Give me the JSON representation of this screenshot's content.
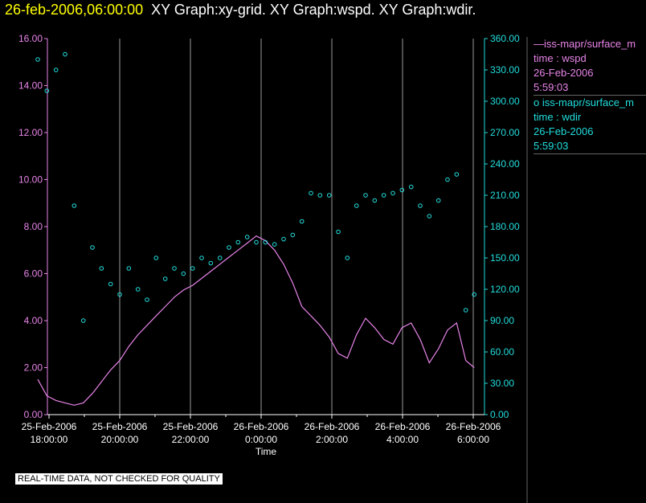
{
  "title": {
    "timestamp": "26-feb-2006,06:00:00",
    "graphs": "XY Graph:xy-grid.  XY Graph:wspd.  XY Graph:wdir."
  },
  "note": "REAL-TIME DATA, NOT CHECKED FOR QUALITY",
  "legend": {
    "series1": {
      "name": "—iss-mapr/surface_m",
      "var": "time : wspd",
      "date": "26-Feb-2006",
      "time": "5:59:03"
    },
    "series2": {
      "name": "o iss-mapr/surface_m",
      "var": "time : wdir",
      "date": "26-Feb-2006",
      "time": "5:59:03"
    }
  },
  "colors": {
    "wspd": "#e884e8",
    "wdir": "#22dddd",
    "timestamp": "#ffff00",
    "grid": "#9a9a9a"
  },
  "chart_data": {
    "type": "line",
    "xlabel": "Time",
    "x_ticks": [
      {
        "date": "25-Feb-2006",
        "time": "18:00:00"
      },
      {
        "date": "25-Feb-2006",
        "time": "20:00:00"
      },
      {
        "date": "25-Feb-2006",
        "time": "22:00:00"
      },
      {
        "date": "26-Feb-2006",
        "time": "0:00:00"
      },
      {
        "date": "26-Feb-2006",
        "time": "2:00:00"
      },
      {
        "date": "26-Feb-2006",
        "time": "4:00:00"
      },
      {
        "date": "26-Feb-2006",
        "time": "6:00:00"
      }
    ],
    "xlim": [
      "25-Feb-2006 18:00:00",
      "26-Feb-2006 06:00:00"
    ],
    "y_left": {
      "ticks": [
        "0.00",
        "2.00",
        "4.00",
        "6.00",
        "8.00",
        "10.00",
        "12.00",
        "14.00",
        "16.00"
      ],
      "ylim": [
        0,
        16
      ]
    },
    "y_right": {
      "ticks": [
        "0.00",
        "30.00",
        "60.00",
        "90.00",
        "120.00",
        "150.00",
        "180.00",
        "210.00",
        "240.00",
        "270.00",
        "300.00",
        "330.00",
        "360.00"
      ],
      "ylim": [
        0,
        360
      ]
    },
    "grid": "vertical",
    "series": [
      {
        "var": "wspd",
        "style": "line",
        "axis": "left",
        "points": [
          [
            "25-Feb-2006 18:00",
            1.5
          ],
          [
            "25-Feb-2006 18:15",
            0.8
          ],
          [
            "25-Feb-2006 18:30",
            0.6
          ],
          [
            "25-Feb-2006 18:45",
            0.5
          ],
          [
            "25-Feb-2006 19:00",
            0.4
          ],
          [
            "25-Feb-2006 19:15",
            0.5
          ],
          [
            "25-Feb-2006 19:30",
            0.9
          ],
          [
            "25-Feb-2006 19:45",
            1.4
          ],
          [
            "25-Feb-2006 20:00",
            1.9
          ],
          [
            "25-Feb-2006 20:15",
            2.3
          ],
          [
            "25-Feb-2006 20:30",
            2.9
          ],
          [
            "25-Feb-2006 20:45",
            3.4
          ],
          [
            "25-Feb-2006 21:00",
            3.8
          ],
          [
            "25-Feb-2006 21:15",
            4.2
          ],
          [
            "25-Feb-2006 21:30",
            4.6
          ],
          [
            "25-Feb-2006 21:45",
            5.0
          ],
          [
            "25-Feb-2006 22:00",
            5.3
          ],
          [
            "25-Feb-2006 22:15",
            5.5
          ],
          [
            "25-Feb-2006 22:30",
            5.8
          ],
          [
            "25-Feb-2006 22:45",
            6.1
          ],
          [
            "25-Feb-2006 23:00",
            6.4
          ],
          [
            "25-Feb-2006 23:15",
            6.7
          ],
          [
            "25-Feb-2006 23:30",
            7.0
          ],
          [
            "25-Feb-2006 23:45",
            7.3
          ],
          [
            "26-Feb-2006 00:00",
            7.6
          ],
          [
            "26-Feb-2006 00:15",
            7.4
          ],
          [
            "26-Feb-2006 00:30",
            7.0
          ],
          [
            "26-Feb-2006 00:45",
            6.4
          ],
          [
            "26-Feb-2006 01:00",
            5.6
          ],
          [
            "26-Feb-2006 01:15",
            4.6
          ],
          [
            "26-Feb-2006 01:30",
            4.2
          ],
          [
            "26-Feb-2006 01:45",
            3.8
          ],
          [
            "26-Feb-2006 02:00",
            3.3
          ],
          [
            "26-Feb-2006 02:15",
            2.6
          ],
          [
            "26-Feb-2006 02:30",
            2.4
          ],
          [
            "26-Feb-2006 02:45",
            3.4
          ],
          [
            "26-Feb-2006 03:00",
            4.1
          ],
          [
            "26-Feb-2006 03:15",
            3.7
          ],
          [
            "26-Feb-2006 03:30",
            3.2
          ],
          [
            "26-Feb-2006 03:45",
            3.0
          ],
          [
            "26-Feb-2006 04:00",
            3.7
          ],
          [
            "26-Feb-2006 04:15",
            3.9
          ],
          [
            "26-Feb-2006 04:30",
            3.2
          ],
          [
            "26-Feb-2006 04:45",
            2.2
          ],
          [
            "26-Feb-2006 05:00",
            2.8
          ],
          [
            "26-Feb-2006 05:15",
            3.6
          ],
          [
            "26-Feb-2006 05:30",
            3.9
          ],
          [
            "26-Feb-2006 05:45",
            2.3
          ],
          [
            "26-Feb-2006 05:59",
            2.0
          ]
        ]
      },
      {
        "var": "wdir",
        "style": "circle",
        "axis": "right",
        "points": [
          [
            "25-Feb-2006 18:00",
            340
          ],
          [
            "25-Feb-2006 18:15",
            310
          ],
          [
            "25-Feb-2006 18:30",
            330
          ],
          [
            "25-Feb-2006 18:45",
            345
          ],
          [
            "25-Feb-2006 19:00",
            200
          ],
          [
            "25-Feb-2006 19:15",
            90
          ],
          [
            "25-Feb-2006 19:30",
            160
          ],
          [
            "25-Feb-2006 19:45",
            140
          ],
          [
            "25-Feb-2006 20:00",
            125
          ],
          [
            "25-Feb-2006 20:15",
            115
          ],
          [
            "25-Feb-2006 20:30",
            140
          ],
          [
            "25-Feb-2006 20:45",
            120
          ],
          [
            "25-Feb-2006 21:00",
            110
          ],
          [
            "25-Feb-2006 21:15",
            150
          ],
          [
            "25-Feb-2006 21:30",
            130
          ],
          [
            "25-Feb-2006 21:45",
            140
          ],
          [
            "25-Feb-2006 22:00",
            135
          ],
          [
            "25-Feb-2006 22:15",
            140
          ],
          [
            "25-Feb-2006 22:30",
            150
          ],
          [
            "25-Feb-2006 22:45",
            145
          ],
          [
            "25-Feb-2006 23:00",
            150
          ],
          [
            "25-Feb-2006 23:15",
            160
          ],
          [
            "25-Feb-2006 23:30",
            165
          ],
          [
            "25-Feb-2006 23:45",
            170
          ],
          [
            "26-Feb-2006 00:00",
            165
          ],
          [
            "26-Feb-2006 00:15",
            165
          ],
          [
            "26-Feb-2006 00:30",
            163
          ],
          [
            "26-Feb-2006 00:45",
            168
          ],
          [
            "26-Feb-2006 01:00",
            172
          ],
          [
            "26-Feb-2006 01:15",
            185
          ],
          [
            "26-Feb-2006 01:30",
            212
          ],
          [
            "26-Feb-2006 01:45",
            210
          ],
          [
            "26-Feb-2006 02:00",
            210
          ],
          [
            "26-Feb-2006 02:15",
            175
          ],
          [
            "26-Feb-2006 02:30",
            150
          ],
          [
            "26-Feb-2006 02:45",
            200
          ],
          [
            "26-Feb-2006 03:00",
            210
          ],
          [
            "26-Feb-2006 03:15",
            205
          ],
          [
            "26-Feb-2006 03:30",
            210
          ],
          [
            "26-Feb-2006 03:45",
            212
          ],
          [
            "26-Feb-2006 04:00",
            215
          ],
          [
            "26-Feb-2006 04:15",
            218
          ],
          [
            "26-Feb-2006 04:30",
            200
          ],
          [
            "26-Feb-2006 04:45",
            190
          ],
          [
            "26-Feb-2006 05:00",
            205
          ],
          [
            "26-Feb-2006 05:15",
            225
          ],
          [
            "26-Feb-2006 05:30",
            230
          ],
          [
            "26-Feb-2006 05:45",
            100
          ],
          [
            "26-Feb-2006 05:59",
            115
          ]
        ]
      }
    ]
  }
}
